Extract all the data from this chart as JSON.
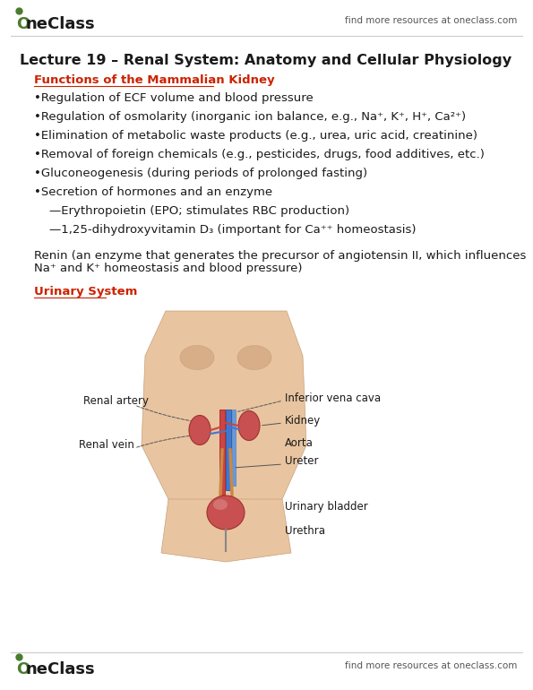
{
  "title": "Lecture 19 – Renal System: Anatomy and Cellular Physiology",
  "header_right": "find more resources at oneclass.com",
  "footer_right": "find more resources at oneclass.com",
  "section1_label": "Functions of the Mammalian Kidney",
  "bullet_points": [
    "•Regulation of ECF volume and blood pressure",
    "•Regulation of osmolarity (inorganic ion balance, e.g., Na⁺, K⁺, H⁺, Ca²⁺)",
    "•Elimination of metabolic waste products (e.g., urea, uric acid, creatinine)",
    "•Removal of foreign chemicals (e.g., pesticides, drugs, food additives, etc.)",
    "•Gluconeogenesis (during periods of prolonged fasting)",
    "•Secretion of hormones and an enzyme",
    "—Erythropoietin (EPO; stimulates RBC production)",
    "—1,25-dihydroxyvitamin D₃ (important for Ca⁺⁺ homeostasis)"
  ],
  "renin_line1": "Renin (an enzyme that generates the precursor of angiotensin II, which influences",
  "renin_line2": "Na⁺ and K⁺ homeostasis and blood pressure)",
  "section2_label": "Urinary System",
  "bg_color": "#ffffff",
  "text_color": "#1a1a1a",
  "red_color": "#cc2200",
  "logo_green": "#4a7c2f",
  "body_color": "#e8c4a0",
  "body_edge": "#c9a07a",
  "kidney_color": "#c85050",
  "kidney_edge": "#a03030",
  "vessel_blue": "#4477cc",
  "vessel_blue2": "#6699dd",
  "ureter_color": "#cc8844",
  "title_fontsize": 11.5,
  "body_fontsize": 9.5,
  "label_fontsize": 8.5,
  "logo_fontsize": 13
}
